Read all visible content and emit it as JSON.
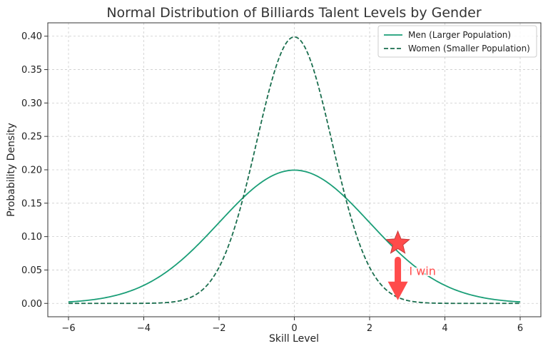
{
  "chart_data": {
    "type": "line",
    "title": "Normal Distribution of Billiards Talent Levels by Gender",
    "xlabel": "Skill Level",
    "ylabel": "Probability Density",
    "xlim": [
      -6.55,
      6.55
    ],
    "ylim": [
      -0.02,
      0.42
    ],
    "xticks": [
      -6,
      -4,
      -2,
      0,
      2,
      4,
      6
    ],
    "xtick_labels": [
      "−6",
      "−4",
      "−2",
      "0",
      "2",
      "4",
      "6"
    ],
    "yticks": [
      0.0,
      0.05,
      0.1,
      0.15,
      0.2,
      0.25,
      0.3,
      0.35,
      0.4
    ],
    "ytick_labels": [
      "0.00",
      "0.05",
      "0.10",
      "0.15",
      "0.20",
      "0.25",
      "0.30",
      "0.35",
      "0.40"
    ],
    "grid": true,
    "legend_position": "top-right",
    "x_range": [
      -6,
      6
    ],
    "series": [
      {
        "name": "Men (Larger Population)",
        "style": "solid",
        "color": "#1a9e77",
        "mean": 0,
        "sd": 2
      },
      {
        "name": "Women (Smaller Population)",
        "style": "dashed",
        "color": "#1a6e4e",
        "mean": 0,
        "sd": 1
      }
    ],
    "annotations": [
      {
        "type": "star",
        "x": 2.75,
        "y": 0.09,
        "color": "#ff4b4b"
      },
      {
        "type": "arrow",
        "x": 2.75,
        "y_start": 0.065,
        "y_end": 0.007,
        "color": "#ff4b4b"
      },
      {
        "type": "text",
        "text": "I win",
        "x": 3.05,
        "y": 0.048,
        "color": "#ff4b4b"
      }
    ]
  }
}
